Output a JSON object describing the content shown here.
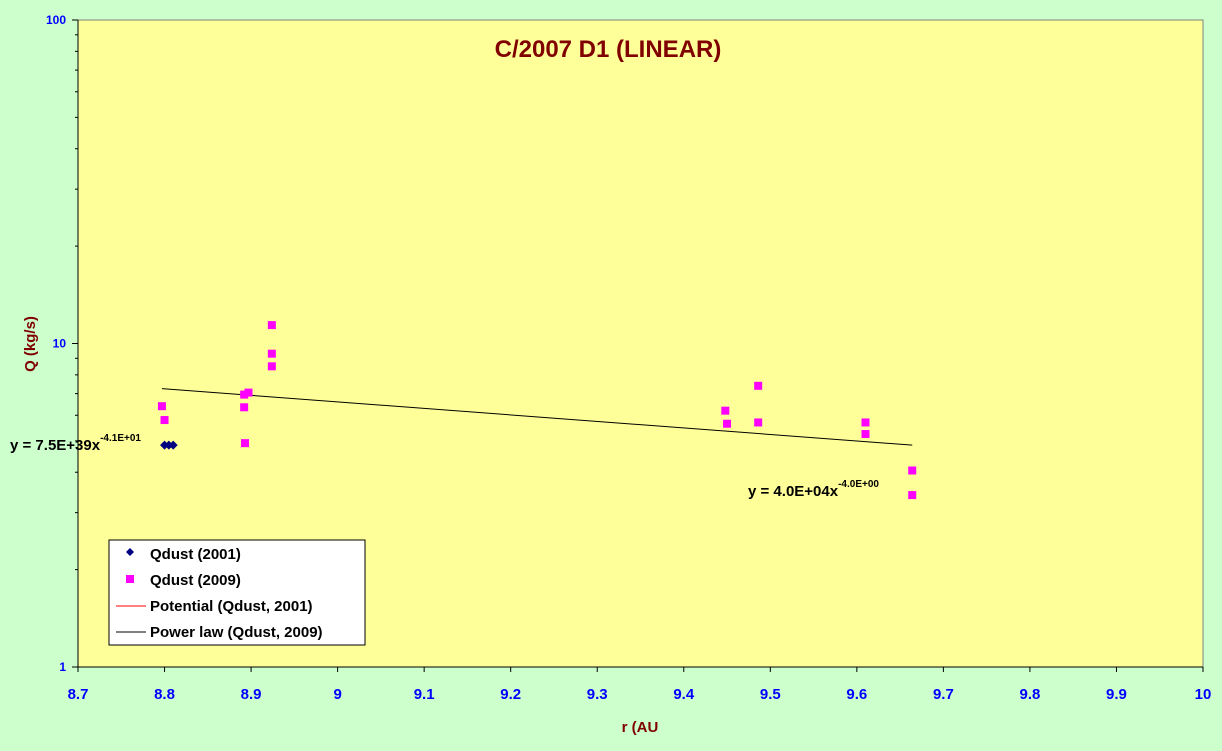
{
  "chart_data": {
    "type": "scatter",
    "title": "C/2007 D1 (LINEAR)",
    "xlabel": "r (AU",
    "ylabel": "Q (kg/s)",
    "xlim": [
      8.7,
      10
    ],
    "ylim": [
      1,
      100
    ],
    "yscale": "log",
    "grid": false,
    "legend_position": "bottom-left",
    "x_ticks": [
      "8.7",
      "8.8",
      "8.9",
      "9",
      "9.1",
      "9.2",
      "9.3",
      "9.4",
      "9.5",
      "9.6",
      "9.7",
      "9.8",
      "9.9",
      "10"
    ],
    "y_ticks": [
      "1",
      "10",
      "100"
    ],
    "series": [
      {
        "name": "Qdust (2001)",
        "marker": "diamond",
        "color": "#000080",
        "points": [
          [
            8.8,
            4.85
          ],
          [
            8.805,
            4.85
          ],
          [
            8.81,
            4.85
          ]
        ]
      },
      {
        "name": "Qdust (2009)",
        "marker": "square",
        "color": "#ff00ff",
        "points": [
          [
            8.797,
            6.4
          ],
          [
            8.8,
            5.8
          ],
          [
            8.892,
            6.95
          ],
          [
            8.897,
            7.05
          ],
          [
            8.892,
            6.35
          ],
          [
            8.893,
            4.92
          ],
          [
            8.924,
            11.4
          ],
          [
            8.924,
            9.3
          ],
          [
            8.924,
            8.5
          ],
          [
            9.448,
            6.2
          ],
          [
            9.45,
            5.65
          ],
          [
            9.486,
            7.4
          ],
          [
            9.486,
            5.7
          ],
          [
            9.61,
            5.7
          ],
          [
            9.61,
            5.25
          ],
          [
            9.664,
            4.05
          ],
          [
            9.664,
            3.4
          ]
        ]
      },
      {
        "name": "Potential (Qdust, 2001)",
        "type": "line",
        "color": "#ff0000",
        "points": [
          [
            8.8,
            4.95
          ],
          [
            8.81,
            4.75
          ]
        ]
      },
      {
        "name": "Power law (Qdust, 2009)",
        "type": "line",
        "color": "#000000",
        "points": [
          [
            8.797,
            7.25
          ],
          [
            9.664,
            4.85
          ]
        ]
      }
    ],
    "annotations": [
      {
        "base": "y = 7.5E+39x",
        "exp": "-4.1E+01"
      },
      {
        "base": "y = 4.0E+04x",
        "exp": "-4.0E+00"
      }
    ]
  },
  "colors": {
    "outer_background": "#ccffcc",
    "plot_background": "#ffff99",
    "title": "#800000",
    "tick_labels": "#0000ff"
  }
}
